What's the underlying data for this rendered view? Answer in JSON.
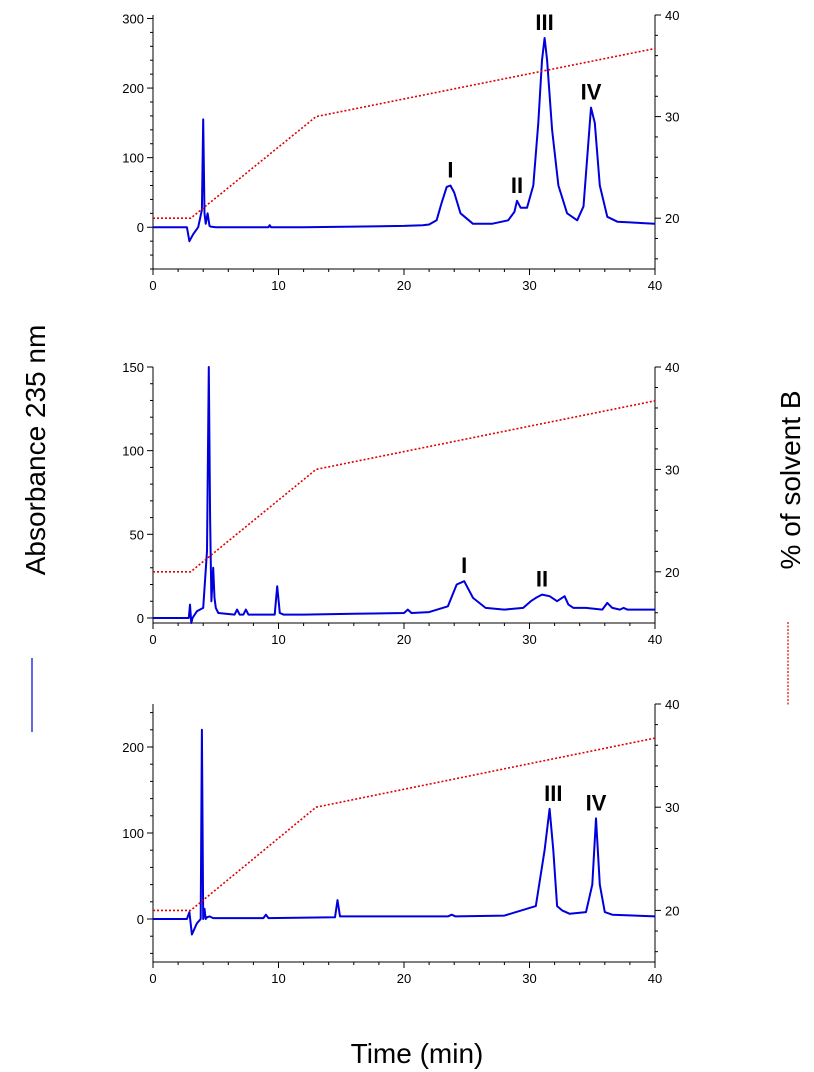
{
  "axis_titles": {
    "left": "Absorbance 235 nm",
    "right": "% of solvent B",
    "bottom": "Time (min)"
  },
  "colors": {
    "absorbance": "#0000dd",
    "solvent_b": "#e00000"
  },
  "chart_data": [
    {
      "type": "line",
      "xlim": [
        0,
        40
      ],
      "ylim": [
        -60,
        305
      ],
      "y2lim": [
        15,
        40
      ],
      "x_ticks": [
        0,
        10,
        20,
        30,
        40
      ],
      "y_ticks": [
        0,
        100,
        200,
        300
      ],
      "y2_ticks": [
        20,
        30,
        40
      ],
      "grid": false,
      "series": [
        {
          "axis": "left",
          "color": "#0000dd",
          "x": [
            0,
            2.7,
            2.9,
            3.2,
            3.6,
            3.9,
            4.0,
            4.1,
            4.2,
            4.35,
            4.5,
            4.6,
            5.0,
            8,
            9.2,
            9.3,
            9.4,
            12,
            16,
            20,
            21.5,
            22,
            22.6,
            23.0,
            23.4,
            23.7,
            24.0,
            24.5,
            25.5,
            27,
            28.3,
            28.8,
            29.0,
            29.3,
            29.8,
            30.3,
            30.7,
            31.0,
            31.2,
            31.4,
            31.8,
            32.3,
            33.0,
            33.8,
            34.3,
            34.6,
            34.9,
            35.2,
            35.6,
            36.2,
            37,
            38,
            39,
            40
          ],
          "y": [
            0,
            0,
            -20,
            -10,
            0,
            25,
            155,
            20,
            5,
            20,
            2,
            1,
            0,
            0,
            0,
            3,
            0,
            0,
            1,
            2,
            3,
            4,
            10,
            35,
            58,
            60,
            50,
            20,
            5,
            5,
            10,
            22,
            38,
            28,
            28,
            60,
            150,
            240,
            272,
            240,
            140,
            60,
            20,
            10,
            30,
            100,
            172,
            150,
            60,
            15,
            8,
            7,
            6,
            5
          ]
        },
        {
          "axis": "right",
          "color": "#e00000",
          "x": [
            0,
            3,
            13,
            40
          ],
          "y": [
            20,
            20,
            30,
            36.7
          ]
        }
      ],
      "annotations": [
        {
          "text": "I",
          "x": 23.7,
          "y": 60
        },
        {
          "text": "II",
          "x": 29.0,
          "y": 38
        },
        {
          "text": "III",
          "x": 31.2,
          "y": 272
        },
        {
          "text": "IV",
          "x": 34.9,
          "y": 172
        }
      ]
    },
    {
      "type": "line",
      "xlim": [
        0,
        40
      ],
      "ylim": [
        -3,
        150
      ],
      "y2lim": [
        15,
        40
      ],
      "x_ticks": [
        0,
        10,
        20,
        30,
        40
      ],
      "y_ticks": [
        0,
        50,
        100,
        150
      ],
      "y2_ticks": [
        20,
        30,
        40
      ],
      "grid": false,
      "series": [
        {
          "axis": "left",
          "color": "#0000dd",
          "x": [
            0,
            2.85,
            2.95,
            3.05,
            3.15,
            3.5,
            4.0,
            4.3,
            4.45,
            4.55,
            4.65,
            4.8,
            4.9,
            5.0,
            5.2,
            6.5,
            6.7,
            6.9,
            7.2,
            7.4,
            7.6,
            9.7,
            9.9,
            10.1,
            10.4,
            12,
            16,
            20,
            20.3,
            20.6,
            22,
            23.5,
            24.2,
            24.8,
            25.5,
            26.5,
            28,
            29.5,
            30.1,
            30.5,
            31.0,
            31.6,
            32.2,
            32.8,
            33.1,
            33.5,
            34.5,
            35.8,
            36.2,
            36.6,
            37.2,
            37.5,
            37.8,
            40
          ],
          "y": [
            0,
            0,
            8,
            -3,
            0,
            4,
            6,
            40,
            150,
            60,
            10,
            30,
            12,
            6,
            3,
            2,
            5,
            2,
            2,
            5,
            2,
            2,
            19,
            3,
            2,
            2,
            2.5,
            3,
            5,
            3,
            3.5,
            7,
            20,
            22,
            12,
            6,
            5,
            6,
            10,
            12,
            14,
            13,
            10,
            13,
            8,
            6,
            6,
            5,
            9,
            6,
            5,
            6,
            5,
            5
          ]
        },
        {
          "axis": "right",
          "color": "#e00000",
          "x": [
            0,
            3,
            13,
            40
          ],
          "y": [
            20,
            20,
            30,
            36.7
          ]
        }
      ],
      "annotations": [
        {
          "text": "I",
          "x": 24.8,
          "y": 22
        },
        {
          "text": "II",
          "x": 31.0,
          "y": 14
        }
      ]
    },
    {
      "type": "line",
      "xlim": [
        0,
        40
      ],
      "ylim": [
        -50,
        250
      ],
      "y2lim": [
        15,
        40
      ],
      "x_ticks": [
        0,
        10,
        20,
        30,
        40
      ],
      "y_ticks": [
        0,
        100,
        200
      ],
      "y2_ticks": [
        20,
        30,
        40
      ],
      "grid": false,
      "series": [
        {
          "axis": "left",
          "color": "#0000dd",
          "x": [
            0,
            2.7,
            2.9,
            3.1,
            3.5,
            3.8,
            3.9,
            4.0,
            4.1,
            4.2,
            4.3,
            4.5,
            4.8,
            8.8,
            9.0,
            9.2,
            14.5,
            14.7,
            14.9,
            17,
            20,
            23.5,
            23.8,
            24.1,
            28,
            30.5,
            31.2,
            31.6,
            31.9,
            32.2,
            32.6,
            33.2,
            34.5,
            35.0,
            35.3,
            35.6,
            36.0,
            36.6,
            40
          ],
          "y": [
            0,
            0,
            8,
            -18,
            -5,
            0,
            220,
            0,
            12,
            0,
            2,
            3,
            1,
            1,
            5,
            1,
            2,
            22,
            3,
            3,
            3,
            3,
            5,
            3,
            4,
            15,
            80,
            128,
            80,
            15,
            10,
            6,
            8,
            40,
            117,
            40,
            8,
            5,
            3
          ]
        },
        {
          "axis": "right",
          "color": "#e00000",
          "x": [
            0,
            3,
            13,
            40
          ],
          "y": [
            20,
            20,
            30,
            36.7
          ]
        }
      ],
      "annotations": [
        {
          "text": "III",
          "x": 31.9,
          "y": 128
        },
        {
          "text": "IV",
          "x": 35.3,
          "y": 117
        }
      ]
    }
  ]
}
